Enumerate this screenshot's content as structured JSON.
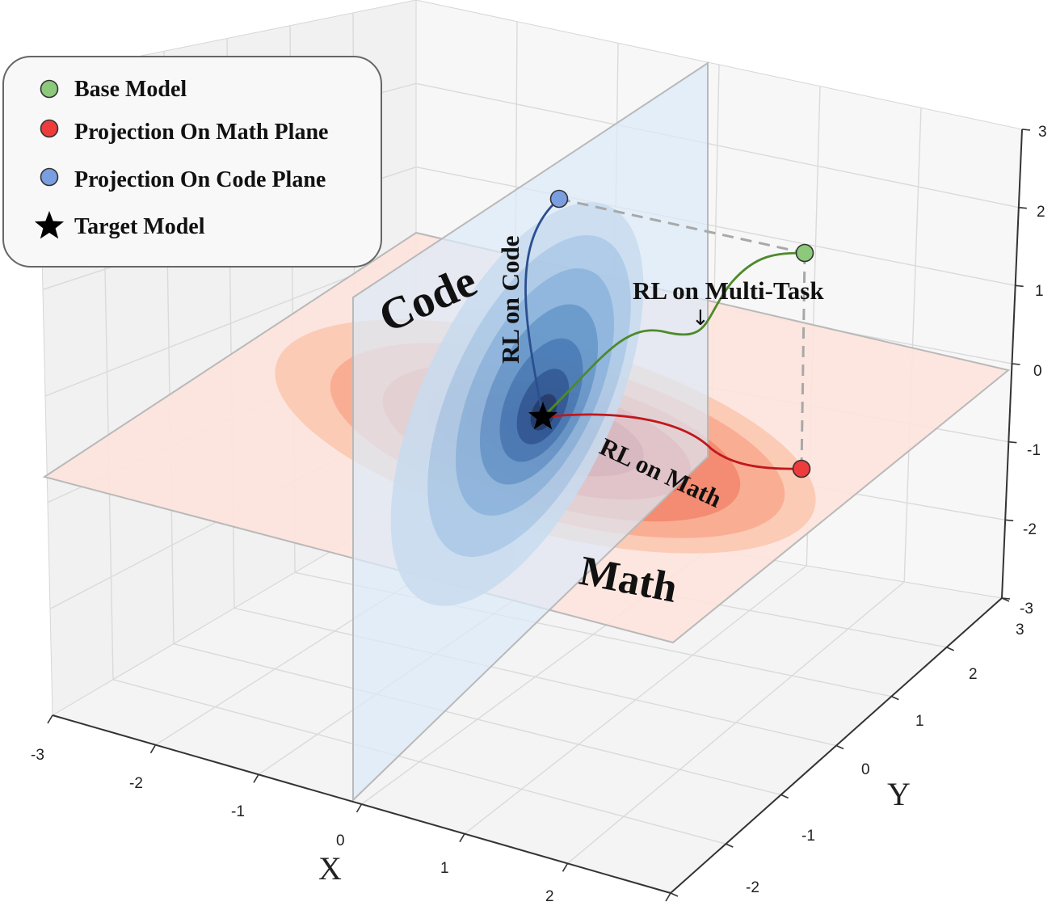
{
  "legend": {
    "items": [
      {
        "label": "Base Model",
        "marker": "circle",
        "color": "#8cc97a"
      },
      {
        "label": "Projection On Math Plane",
        "marker": "circle",
        "color": "#ee3b3b"
      },
      {
        "label": "Projection On Code Plane",
        "marker": "circle",
        "color": "#7a9ee0"
      },
      {
        "label": "Target Model",
        "marker": "star",
        "color": "#000000"
      }
    ]
  },
  "planes": {
    "code": {
      "label": "Code",
      "color": "#3a66a8"
    },
    "math": {
      "label": "Math",
      "color": "#b8282d"
    }
  },
  "paths": {
    "code": {
      "label": "RL on Code",
      "color": "#2b4f8f"
    },
    "math": {
      "label": "RL on Math",
      "color": "#c0181c"
    },
    "multi": {
      "label": "RL on Multi-Task",
      "color": "#4e8a2c",
      "arrow": "↓"
    }
  },
  "axes": {
    "x": {
      "title": "X",
      "ticks": [
        "-3",
        "-2",
        "-1",
        "0",
        "1",
        "2"
      ]
    },
    "y": {
      "title": "Y",
      "ticks": [
        "-2",
        "-1",
        "0",
        "1",
        "2",
        "3"
      ]
    },
    "z": {
      "ticks": [
        "3",
        "2",
        "1",
        "0",
        "-1",
        "-2",
        "-3"
      ]
    }
  }
}
